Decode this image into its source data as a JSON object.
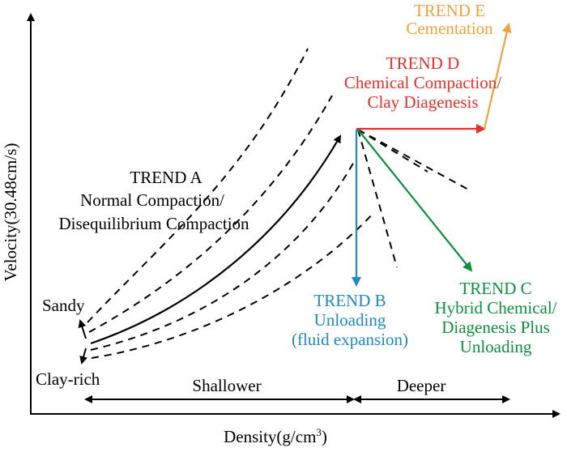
{
  "axes": {
    "y_label": "Velocity(30.48cm/s)",
    "x_label_main": "Density(g/cm",
    "x_label_sup": "3",
    "x_label_close": ")"
  },
  "depth": {
    "shallower": "Shallower",
    "deeper": "Deeper"
  },
  "lithology": {
    "sandy": "Sandy",
    "clay_rich": "Clay-rich"
  },
  "trends": {
    "a": {
      "lines": [
        "TREND A",
        "Normal Compaction/",
        "Disequilibrium Compaction"
      ],
      "color": "#000000"
    },
    "b": {
      "lines": [
        "TREND B",
        "Unloading",
        "(fluid expansion)"
      ],
      "color": "#1f88c6"
    },
    "c": {
      "lines": [
        "TREND C",
        "Hybrid Chemical/",
        "Diagenesis Plus",
        "Unloading"
      ],
      "color": "#0e8f3c"
    },
    "d": {
      "lines": [
        "TREND D",
        "Chemical Compaction/",
        "Clay Diagenesis"
      ],
      "color": "#e0312b"
    },
    "e": {
      "lines": [
        "TREND E",
        "Cementation"
      ],
      "color": "#f0a23a"
    }
  }
}
